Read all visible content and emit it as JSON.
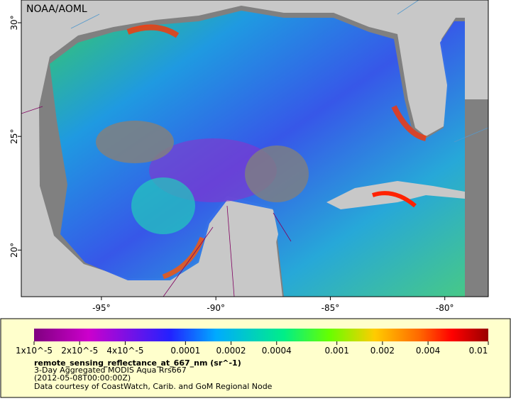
{
  "map": {
    "watermark": "NOAA/AOML",
    "lonlim": [
      -98.5,
      -78.1
    ],
    "latlim": [
      31,
      17.95
    ],
    "lon_ticks": [
      {
        "value": -95,
        "label": "-95°"
      },
      {
        "value": -90,
        "label": "-90°"
      },
      {
        "value": -85,
        "label": "-85°"
      },
      {
        "value": -80,
        "label": "-80°"
      }
    ],
    "lat_ticks": [
      {
        "value": 30,
        "label": "30°"
      },
      {
        "value": 25,
        "label": "25°"
      },
      {
        "value": 20,
        "label": "20°"
      }
    ]
  },
  "colorbar": {
    "scale": "log",
    "range": [
      1e-05,
      0.01
    ],
    "ticks": [
      {
        "value": 1e-05,
        "label": "1x10^-5"
      },
      {
        "value": 2e-05,
        "label": "2x10^-5"
      },
      {
        "value": 4e-05,
        "label": "4x10^-5"
      },
      {
        "value": 0.0001,
        "label": "0.0001"
      },
      {
        "value": 0.0002,
        "label": "0.0002"
      },
      {
        "value": 0.0004,
        "label": "0.0004"
      },
      {
        "value": 0.001,
        "label": "0.001"
      },
      {
        "value": 0.002,
        "label": "0.002"
      },
      {
        "value": 0.004,
        "label": "0.004"
      },
      {
        "value": 0.01,
        "label": "0.01"
      }
    ]
  },
  "legend": {
    "variable": "remote_sensing_reflectance_at_667_nm (sr^-1)",
    "description": "3-Day Aggregated MODIS Aqua Rrs667",
    "time": "(2012-05-08T00:00:00Z)",
    "credit": "Data courtesy of CoastWatch, Carib. and GoM Regional Node"
  }
}
